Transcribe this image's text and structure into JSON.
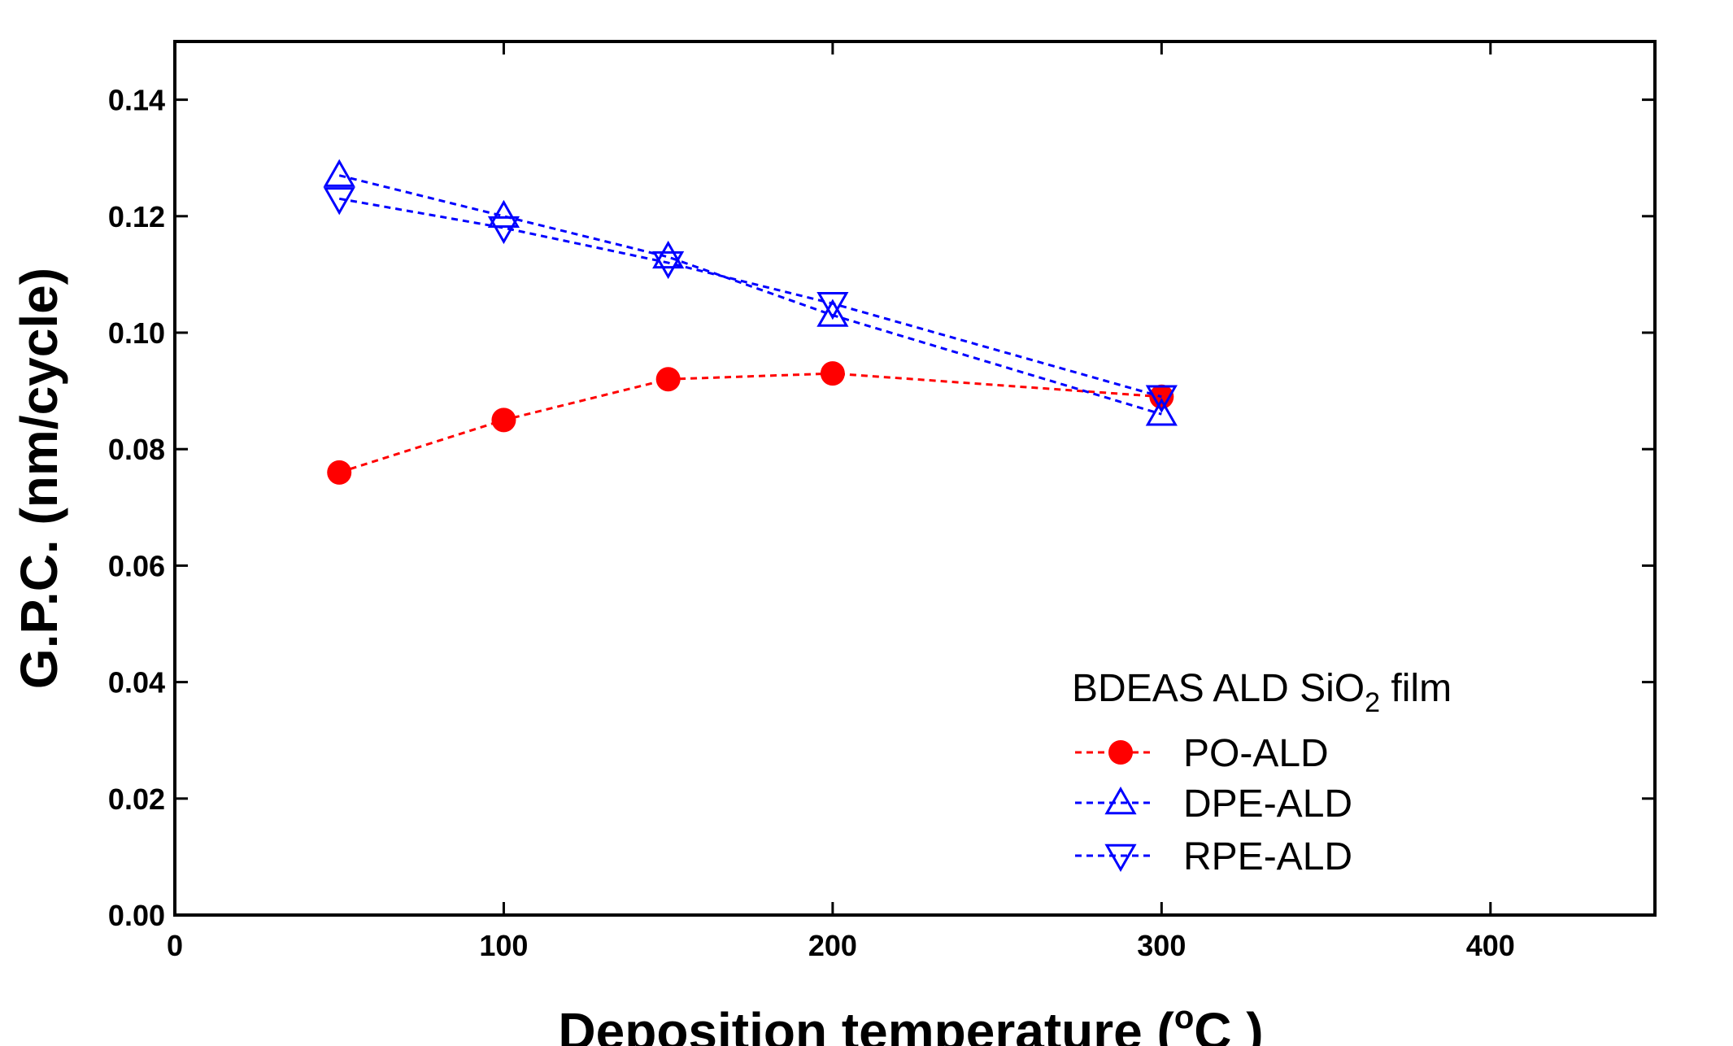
{
  "chart_data": {
    "type": "line",
    "xlabel_main": "Deposition temperature (",
    "xlabel_deg": "o",
    "xlabel_unit": "C )",
    "ylabel": "G.P.C. (nm/cycle)",
    "xlim": [
      0,
      450
    ],
    "ylim": [
      0,
      0.15
    ],
    "xticks": [
      0,
      100,
      200,
      300,
      400
    ],
    "xtick_labels": [
      "0",
      "100",
      "200",
      "300",
      "400"
    ],
    "yticks": [
      0,
      0.02,
      0.04,
      0.06,
      0.08,
      0.1,
      0.12,
      0.14
    ],
    "ytick_labels": [
      "0.00",
      "0.02",
      "0.04",
      "0.06",
      "0.08",
      "0.10",
      "0.12",
      "0.14"
    ],
    "grid": false,
    "legend_position": "bottom-right",
    "legend_title_main": "BDEAS ALD SiO",
    "legend_title_sub": "2",
    "legend_title_tail": " film",
    "series": [
      {
        "name": "PO-ALD",
        "x": [
          50,
          100,
          150,
          200,
          300
        ],
        "y": [
          0.076,
          0.085,
          0.092,
          0.093,
          0.089
        ],
        "color": "#ff0000",
        "marker": "filled-circle"
      },
      {
        "name": "DPE-ALD",
        "x": [
          50,
          100,
          150,
          200,
          300
        ],
        "y": [
          0.127,
          0.12,
          0.113,
          0.103,
          0.086
        ],
        "color": "#0000ff",
        "marker": "open-triangle-up"
      },
      {
        "name": "RPE-ALD",
        "x": [
          50,
          100,
          150,
          200,
          300
        ],
        "y": [
          0.123,
          0.118,
          0.112,
          0.105,
          0.089
        ],
        "color": "#0000ff",
        "marker": "open-triangle-down"
      }
    ]
  }
}
